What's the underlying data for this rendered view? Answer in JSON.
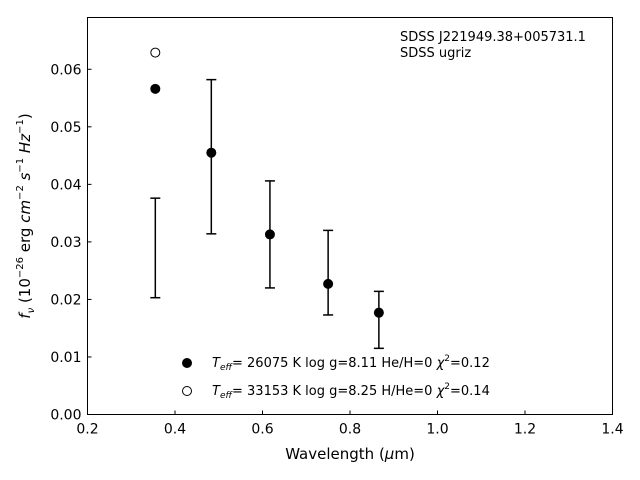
{
  "chart_data": {
    "type": "scatter",
    "annotation": [
      "SDSS J221949.38+005731.1",
      "SDSS ugriz"
    ],
    "xlabel": {
      "main": "Wavelength (",
      "mu": "μ",
      "unit": "m)"
    },
    "ylabel": {
      "f": "f",
      "nu": "ν",
      "open": " (10",
      "exp1": "−26",
      "erg": " erg ",
      "cm": "cm",
      "exp2": "−2",
      "s": " s",
      "exp3": "−1",
      "hz": " Hz",
      "exp4": "−1",
      "close": ")"
    },
    "xlim": [
      0.2,
      1.4
    ],
    "ylim": [
      0.0,
      0.069
    ],
    "x_ticks": [
      0.2,
      0.4,
      0.6,
      0.8,
      1.0,
      1.2,
      1.4
    ],
    "x_tick_labels": [
      "0.2",
      "0.4",
      "0.6",
      "0.8",
      "1.0",
      "1.2",
      "1.4"
    ],
    "y_ticks": [
      0.0,
      0.01,
      0.02,
      0.03,
      0.04,
      0.05,
      0.06
    ],
    "y_tick_labels": [
      "0.00",
      "0.01",
      "0.02",
      "0.03",
      "0.04",
      "0.05",
      "0.06"
    ],
    "grid": false,
    "legend_position": "bottom-center",
    "observed": {
      "errorbars": [
        {
          "x": 0.355,
          "low": 0.0203,
          "high": 0.0376
        },
        {
          "x": 0.483,
          "low": 0.0314,
          "high": 0.0582
        },
        {
          "x": 0.617,
          "low": 0.022,
          "high": 0.0406
        },
        {
          "x": 0.75,
          "low": 0.0173,
          "high": 0.032
        },
        {
          "x": 0.866,
          "low": 0.0115,
          "high": 0.0214
        }
      ]
    },
    "series": [
      {
        "name": "26075 K  log g=8.11  He/H=0  ",
        "marker": "filled",
        "x": [
          0.355,
          0.483,
          0.617,
          0.75,
          0.866
        ],
        "y": [
          0.0566,
          0.0455,
          0.0313,
          0.0227,
          0.0177
        ]
      },
      {
        "name": "33153 K  log g=8.25  H/He=0  ",
        "marker": "open",
        "x": [
          0.355
        ],
        "y": [
          0.0629
        ]
      }
    ],
    "legend": [
      {
        "T": "T",
        "eff": "eff",
        "eq": "= ",
        "body": "26075 K  log g=8.11  He/H=0  ",
        "chi": "χ",
        "sq": "2",
        "val": "=0.12"
      },
      {
        "T": "T",
        "eff": "eff",
        "eq": "= ",
        "body": "33153 K  log g=8.25  H/He=0  ",
        "chi": "χ",
        "sq": "2",
        "val": "=0.14"
      }
    ]
  }
}
